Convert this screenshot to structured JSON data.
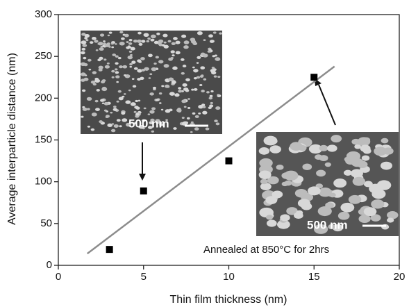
{
  "chart_data": {
    "type": "scatter",
    "xlabel": "Thin film thickness (nm)",
    "ylabel": "Average interparticle distance (nm)",
    "x": [
      3,
      5,
      10,
      15
    ],
    "values": [
      19,
      89,
      125,
      225
    ],
    "color": "#000000",
    "fit_line": {
      "x": [
        1.7,
        16.2
      ],
      "values": [
        14,
        238
      ],
      "color": "#8c8c8c"
    },
    "xlim": [
      0,
      20
    ],
    "xticks": [
      0,
      5,
      10,
      15,
      20
    ],
    "ylim": [
      0,
      300
    ],
    "yticks": [
      0,
      50,
      100,
      150,
      200,
      250,
      300
    ],
    "annotations": [
      "500 nm",
      "500 nm",
      "Annealed at 850°C for 2hrs"
    ]
  }
}
